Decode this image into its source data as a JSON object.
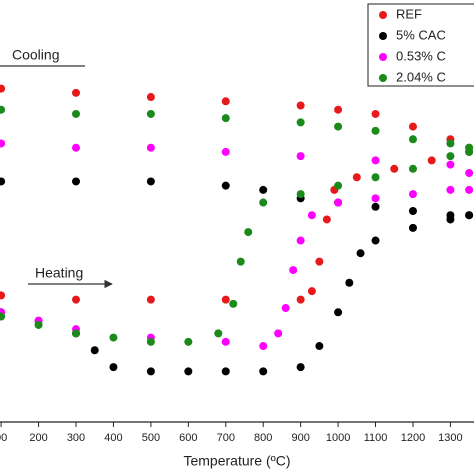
{
  "chart_data": {
    "type": "scatter",
    "x_label": "Temperature (ºC)",
    "annotations": [
      "Cooling",
      "Heating"
    ],
    "xlim": [
      97,
      1363
    ],
    "ylim": [
      0,
      100
    ],
    "xticks": [
      {
        "value": 100,
        "label": "00"
      },
      200,
      300,
      400,
      500,
      600,
      700,
      800,
      900,
      1000,
      1100,
      1200,
      1300
    ],
    "legend": "upper right",
    "series": [
      {
        "name": "REF",
        "color": "#e8191b",
        "x": [
          100,
          300,
          500,
          700,
          900,
          1000,
          1100,
          1200,
          1300,
          1350,
          100,
          300,
          500,
          700,
          900,
          930,
          950,
          970,
          990,
          1050,
          1150,
          1250,
          1350
        ],
        "values": [
          79,
          78,
          77,
          76,
          75,
          74,
          73,
          70,
          67,
          65,
          30,
          29,
          29,
          29,
          29,
          31,
          38,
          48,
          55,
          58,
          60,
          62,
          64
        ]
      },
      {
        "name": "5% CAC",
        "color": "#000000",
        "x": [
          100,
          300,
          500,
          700,
          800,
          900,
          1000,
          1100,
          1200,
          1300,
          1350,
          100,
          200,
          300,
          350,
          400,
          500,
          600,
          700,
          800,
          900,
          950,
          1000,
          1030,
          1060,
          1100,
          1200,
          1300,
          1350
        ],
        "values": [
          57,
          57,
          57,
          56,
          55,
          53,
          52,
          51,
          50,
          49,
          49,
          26,
          24,
          21,
          17,
          13,
          12,
          12,
          12,
          12,
          13,
          18,
          26,
          33,
          40,
          43,
          46,
          48,
          49
        ]
      },
      {
        "name": "0.53% C",
        "color": "#ff00ff",
        "x": [
          100,
          300,
          500,
          700,
          900,
          1100,
          1300,
          1350,
          100,
          200,
          300,
          500,
          700,
          800,
          840,
          860,
          880,
          900,
          930,
          1000,
          1100,
          1200,
          1300,
          1350
        ],
        "values": [
          66,
          65,
          65,
          64,
          63,
          62,
          61,
          59,
          26,
          24,
          22,
          20,
          19,
          18,
          21,
          27,
          36,
          43,
          49,
          52,
          53,
          54,
          55,
          55
        ]
      },
      {
        "name": "2.04% C",
        "color": "#1a8a1a",
        "x": [
          100,
          300,
          500,
          700,
          900,
          1000,
          1100,
          1200,
          1300,
          1350,
          100,
          200,
          300,
          400,
          500,
          600,
          680,
          720,
          740,
          760,
          800,
          900,
          1000,
          1100,
          1200,
          1300,
          1350
        ],
        "values": [
          74,
          73,
          73,
          72,
          71,
          70,
          69,
          67,
          66,
          65,
          25,
          23,
          21,
          20,
          19,
          19,
          21,
          28,
          38,
          45,
          52,
          54,
          56,
          58,
          60,
          63,
          64
        ]
      }
    ]
  }
}
